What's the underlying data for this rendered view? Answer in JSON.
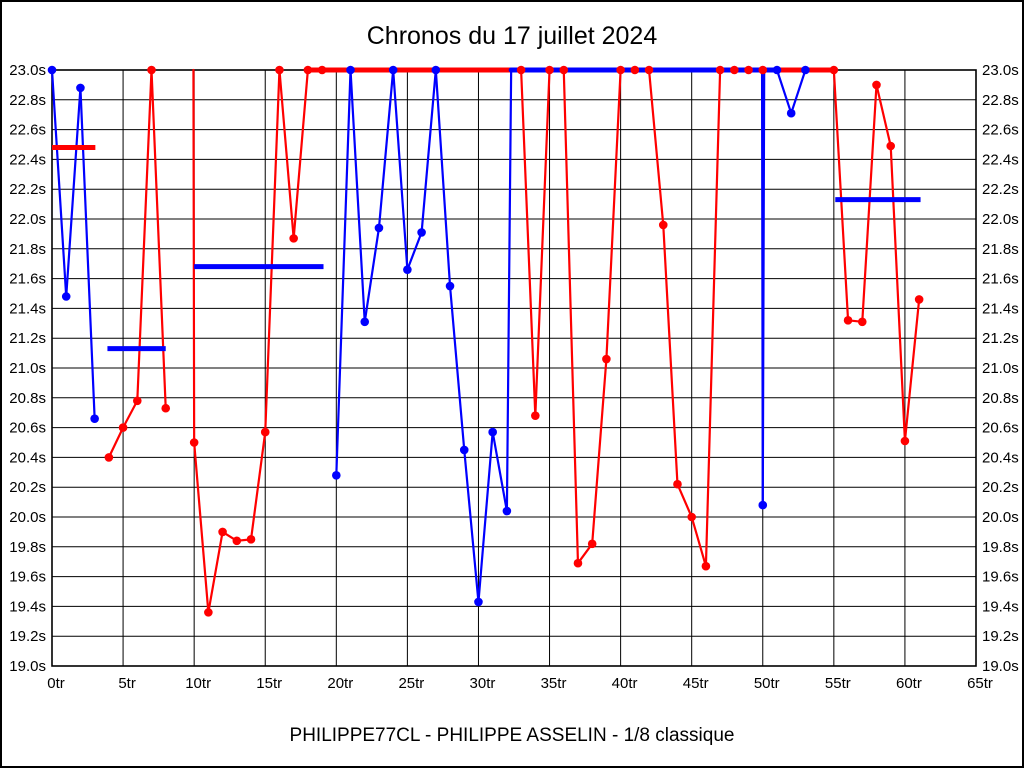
{
  "chart_data": {
    "type": "line",
    "title": "Chronos du 17 juillet 2024",
    "footer": "PHILIPPE77CL - PHILIPPE ASSELIN - 1/8 classique",
    "x_unit": "tr",
    "y_unit": "s",
    "xlim": [
      0,
      65
    ],
    "ylim": [
      19.0,
      23.0
    ],
    "grid": true,
    "legend": "none",
    "x_ticks": [
      0,
      5,
      10,
      15,
      20,
      25,
      30,
      35,
      40,
      45,
      50,
      55,
      60,
      65
    ],
    "x_tick_labels": [
      "0tr",
      "5tr",
      "10tr",
      "15tr",
      "20tr",
      "25tr",
      "30tr",
      "35tr",
      "40tr",
      "45tr",
      "50tr",
      "55tr",
      "60tr",
      "65tr"
    ],
    "y_ticks": [
      23.0,
      22.8,
      22.6,
      22.4,
      22.2,
      22.0,
      21.8,
      21.6,
      21.4,
      21.2,
      21.0,
      20.8,
      20.6,
      20.4,
      20.2,
      20.0,
      19.8,
      19.6,
      19.4,
      19.2,
      19.0
    ],
    "y_tick_labels": [
      "23.0s",
      "22.8s",
      "22.6s",
      "22.4s",
      "22.2s",
      "22.0s",
      "21.8s",
      "21.6s",
      "21.4s",
      "21.2s",
      "21.0s",
      "20.8s",
      "20.6s",
      "20.4s",
      "20.2s",
      "20.0s",
      "19.8s",
      "19.6s",
      "19.4s",
      "19.2s",
      "19.0s"
    ],
    "clip_max_seconds": 23.0,
    "series": [
      {
        "name": "blue-driver",
        "color": "#0000ff",
        "segments": [
          [
            [
              0,
              23.0,
              1
            ],
            [
              1,
              21.48,
              1
            ],
            [
              2,
              22.88,
              1
            ],
            [
              3,
              20.66,
              1
            ]
          ],
          [
            [
              20,
              20.28,
              1
            ],
            [
              21,
              23.0,
              1
            ],
            [
              22,
              21.31,
              1
            ],
            [
              23,
              21.94,
              1
            ],
            [
              24,
              23.0,
              1
            ],
            [
              25,
              21.66,
              1
            ],
            [
              26,
              21.91,
              1
            ],
            [
              27,
              23.0,
              1
            ],
            [
              28,
              21.55,
              1
            ],
            [
              29,
              20.45,
              1
            ],
            [
              30,
              19.43,
              1
            ],
            [
              31,
              20.57,
              1
            ],
            [
              32,
              20.04,
              1
            ],
            [
              32.3,
              23.0,
              0
            ],
            [
              49.95,
              23.0,
              0
            ],
            [
              50,
              20.08,
              1
            ],
            [
              50.1,
              23.0,
              0
            ],
            [
              51,
              23.0,
              1
            ],
            [
              52,
              22.71,
              1
            ],
            [
              53,
              23.0,
              1
            ]
          ]
        ]
      },
      {
        "name": "red-driver",
        "color": "#ff0000",
        "segments": [
          [
            [
              4,
              20.4,
              1
            ],
            [
              5,
              20.6,
              1
            ],
            [
              6,
              20.78,
              1
            ],
            [
              7,
              23.0,
              1
            ],
            [
              8,
              20.73,
              1
            ]
          ],
          [
            [
              9.95,
              23.0,
              0
            ],
            [
              10,
              20.5,
              1
            ],
            [
              11,
              19.36,
              1
            ],
            [
              12,
              19.9,
              1
            ],
            [
              13,
              19.84,
              1
            ],
            [
              14,
              19.85,
              1
            ],
            [
              15,
              20.57,
              1
            ],
            [
              16,
              23.0,
              1
            ],
            [
              17,
              21.87,
              1
            ],
            [
              18,
              23.0,
              1
            ],
            [
              19,
              23.0,
              1
            ],
            [
              33,
              23.0,
              1
            ],
            [
              34,
              20.68,
              1
            ],
            [
              35,
              23.0,
              1
            ],
            [
              36,
              23.0,
              1
            ],
            [
              37,
              19.69,
              1
            ],
            [
              38,
              19.82,
              1
            ],
            [
              39,
              21.06,
              1
            ],
            [
              40,
              23.0,
              1
            ],
            [
              41,
              23.0,
              1
            ],
            [
              42,
              23.0,
              1
            ],
            [
              43,
              21.96,
              1
            ],
            [
              44,
              20.22,
              1
            ],
            [
              45,
              20.0,
              1
            ],
            [
              46,
              19.67,
              1
            ],
            [
              47,
              23.0,
              1
            ],
            [
              48,
              23.0,
              1
            ],
            [
              49,
              23.0,
              1
            ],
            [
              50,
              23.0,
              1
            ],
            [
              55,
              23.0,
              1
            ],
            [
              56,
              21.32,
              1
            ],
            [
              57,
              21.31,
              1
            ],
            [
              58,
              22.9,
              1
            ],
            [
              59,
              22.49,
              1
            ],
            [
              60,
              20.51,
              1
            ],
            [
              61,
              21.46,
              1
            ]
          ]
        ]
      }
    ],
    "average_bars": [
      {
        "color": "#ff0000",
        "from": 0,
        "to": 3.05,
        "value": 22.48
      },
      {
        "color": "#0000ff",
        "from": 3.9,
        "to": 8.0,
        "value": 21.13
      },
      {
        "color": "#0000ff",
        "from": 10.0,
        "to": 19.1,
        "value": 21.68
      },
      {
        "color": "#0000ff",
        "from": 55.1,
        "to": 61.1,
        "value": 22.13
      }
    ]
  },
  "style": {
    "grid_color": "#000000",
    "text_color": "#000000",
    "background": "#ffffff"
  }
}
